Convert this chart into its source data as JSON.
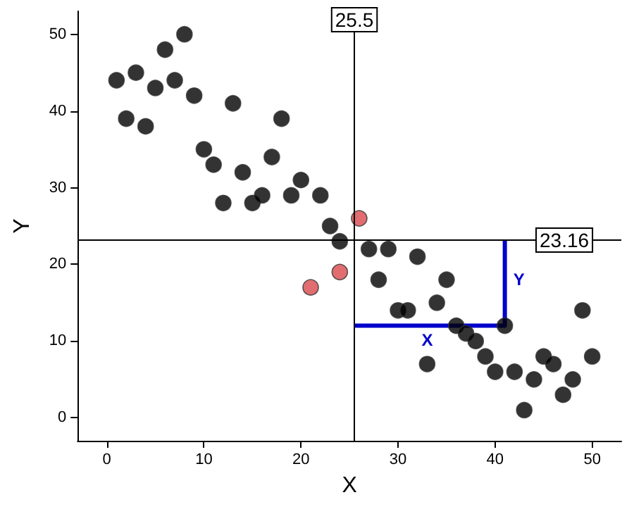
{
  "chart_data": {
    "type": "scatter",
    "xlabel": "X",
    "ylabel": "Y",
    "xlim": [
      -3,
      53
    ],
    "ylim": [
      -3,
      53
    ],
    "xticks": [
      0,
      10,
      20,
      30,
      40,
      50
    ],
    "yticks": [
      0,
      10,
      20,
      30,
      40,
      50
    ],
    "grid": false,
    "marker": "circle",
    "series": [
      {
        "color": "#000000",
        "x": [
          1,
          2,
          3,
          4,
          5,
          6,
          7,
          8,
          9,
          10,
          11,
          12,
          13,
          14,
          15,
          16,
          17,
          18,
          19,
          20,
          22,
          23,
          24,
          27,
          28,
          29,
          30,
          31,
          32,
          33,
          34,
          35,
          36,
          37,
          38,
          39,
          40,
          41,
          42,
          43,
          44,
          45,
          46,
          47,
          48,
          49,
          50
        ],
        "values": [
          44,
          39,
          45,
          38,
          43,
          48,
          44,
          50,
          42,
          35,
          33,
          28,
          41,
          32,
          28,
          29,
          34,
          39,
          29,
          31,
          29,
          25,
          23,
          22,
          18,
          22,
          14,
          14,
          21,
          7,
          15,
          18,
          12,
          11,
          10,
          8,
          6,
          12,
          6,
          1,
          5,
          8,
          7,
          3,
          5,
          14,
          8
        ]
      },
      {
        "color": "#d9494e",
        "x": [
          21,
          24,
          26
        ],
        "values": [
          17,
          19,
          26
        ]
      },
      {
        "type": "line",
        "color": "#0000cc",
        "marker": "none",
        "x": [
          25.5,
          41,
          41
        ],
        "values": [
          12,
          12,
          23.16
        ]
      }
    ],
    "ref_lines": [
      {
        "axis": "x",
        "value": 25.5,
        "label": "25.5",
        "color": "#000000"
      },
      {
        "axis": "y",
        "value": 23.16,
        "label": "23.16",
        "color": "#000000"
      }
    ],
    "annotations": [
      {
        "text": "X",
        "x": 33,
        "y": 12
      },
      {
        "text": "Y",
        "x": 41,
        "y": 18
      }
    ]
  }
}
